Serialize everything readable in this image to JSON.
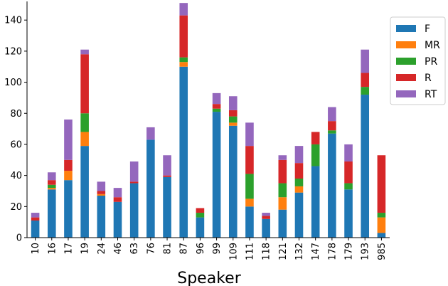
{
  "chart_data": {
    "type": "bar",
    "stacked": true,
    "title": "",
    "xlabel": "Speaker",
    "ylabel": "",
    "ylim": [
      0,
      152
    ],
    "yticks": [
      0,
      20,
      40,
      60,
      80,
      100,
      120,
      140
    ],
    "grid": false,
    "legend_position": "top-right",
    "categories": [
      "10",
      "16",
      "17",
      "19",
      "24",
      "46",
      "63",
      "76",
      "81",
      "87",
      "96",
      "99",
      "109",
      "111",
      "118",
      "121",
      "132",
      "147",
      "178",
      "179",
      "193",
      "985"
    ],
    "series": [
      {
        "name": "F",
        "color": "#1f77b4",
        "values": [
          11,
          31,
          37,
          59,
          27,
          23,
          35,
          63,
          39,
          110,
          13,
          81,
          72,
          20,
          12,
          18,
          29,
          46,
          67,
          31,
          92,
          3
        ]
      },
      {
        "name": "MR",
        "color": "#ff7f0e",
        "values": [
          0,
          1,
          6,
          9,
          1,
          0,
          0,
          0,
          0,
          3,
          0,
          0,
          2,
          5,
          0,
          8,
          4,
          0,
          0,
          0,
          0,
          10
        ]
      },
      {
        "name": "PR",
        "color": "#2ca02c",
        "values": [
          0,
          2,
          0,
          12,
          0,
          0,
          0,
          0,
          0,
          3,
          3,
          2,
          4,
          16,
          0,
          9,
          5,
          14,
          2,
          4,
          5,
          3
        ]
      },
      {
        "name": "R",
        "color": "#d62728",
        "values": [
          2,
          3,
          7,
          38,
          2,
          3,
          1,
          0,
          1,
          27,
          3,
          3,
          4,
          18,
          2,
          15,
          10,
          8,
          6,
          14,
          9,
          37
        ]
      },
      {
        "name": "RT",
        "color": "#9467bd",
        "values": [
          3,
          5,
          26,
          3,
          6,
          6,
          13,
          8,
          13,
          8,
          0,
          7,
          9,
          15,
          2,
          3,
          11,
          0,
          9,
          11,
          15,
          0
        ]
      }
    ]
  }
}
